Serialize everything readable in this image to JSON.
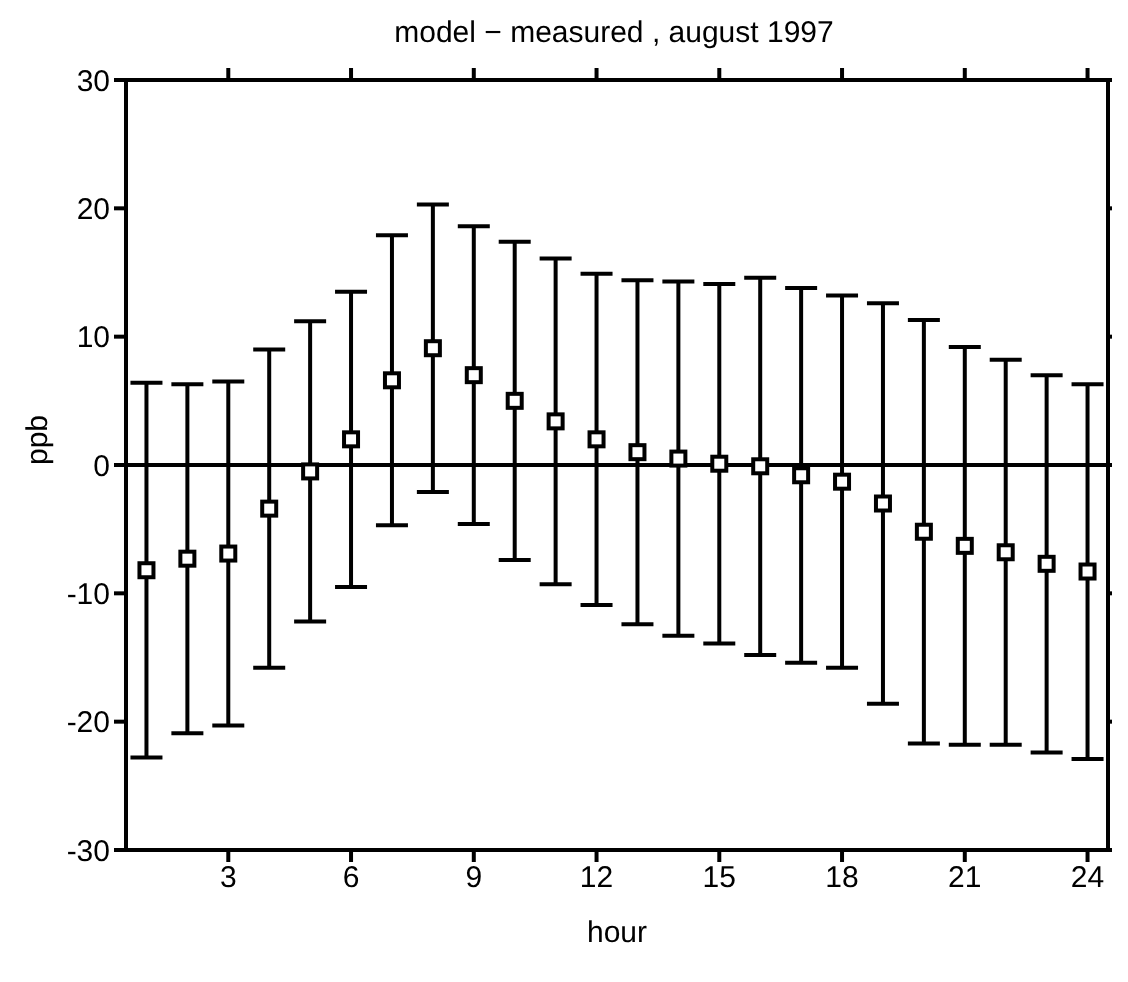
{
  "chart_data": {
    "type": "scatter",
    "title": "model − measured , august 1997",
    "xlabel": "hour",
    "ylabel": "ppb",
    "x": [
      1,
      2,
      3,
      4,
      5,
      6,
      7,
      8,
      9,
      10,
      11,
      12,
      13,
      14,
      15,
      16,
      17,
      18,
      19,
      20,
      21,
      22,
      23,
      24
    ],
    "series": [
      {
        "color": "#000000",
        "values": [
          -8.2,
          -7.3,
          -6.9,
          -3.4,
          -0.5,
          2,
          6.6,
          9.1,
          7,
          5,
          3.4,
          2,
          1,
          0.5,
          0.1,
          -0.1,
          -0.8,
          -1.3,
          -3,
          -5.2,
          -6.3,
          -6.8,
          -7.7,
          -8.3
        ],
        "errors": [
          14.6,
          13.6,
          13.4,
          12.4,
          11.7,
          11.5,
          11.3,
          11.2,
          11.6,
          12.4,
          12.7,
          12.9,
          13.4,
          13.8,
          14,
          14.7,
          14.6,
          14.5,
          15.6,
          16.5,
          15.5,
          15,
          14.7,
          14.6
        ]
      }
    ],
    "xlim": [
      0.5,
      24.5
    ],
    "xticks": [
      3,
      6,
      9,
      12,
      15,
      18,
      21,
      24
    ],
    "ylim": [
      -30,
      30
    ],
    "yticks": [
      -30,
      -20,
      -10,
      0,
      10,
      20,
      30
    ],
    "ref_lines": [
      {
        "axis": "y",
        "value": 0,
        "color": "#000000"
      }
    ],
    "marker": "square"
  }
}
